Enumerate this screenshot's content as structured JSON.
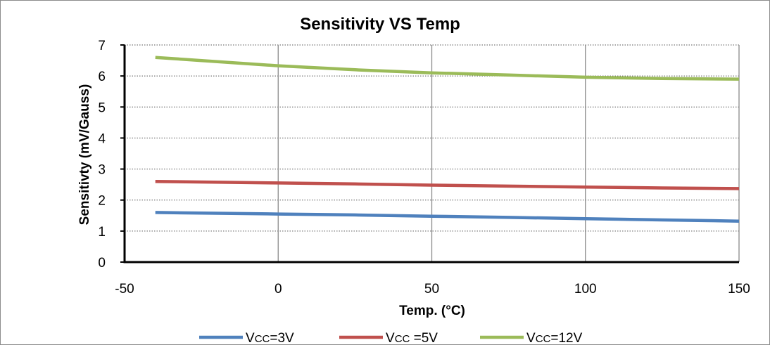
{
  "chart_data": {
    "type": "line",
    "title": "Sensitivity  VS  Temp",
    "xlabel": "Temp. (°C)",
    "ylabel": "Sensitivty (mV/Gauss)",
    "xlim": [
      -50,
      150
    ],
    "ylim": [
      0,
      7
    ],
    "xticks": [
      -50,
      0,
      50,
      100,
      150
    ],
    "yticks": [
      0,
      1,
      2,
      3,
      4,
      5,
      6,
      7
    ],
    "grid": {
      "vertical": "solid",
      "horizontal": "dotted"
    },
    "legend_position": "bottom",
    "x": [
      -40,
      0,
      25,
      50,
      75,
      100,
      125,
      150
    ],
    "series": [
      {
        "legend_main": "V",
        "legend_sub": "CC",
        "legend_suffix": "=3V",
        "color": "#4f81bd",
        "values": [
          1.6,
          1.55,
          1.52,
          1.48,
          1.44,
          1.4,
          1.36,
          1.32
        ]
      },
      {
        "legend_main": "V",
        "legend_sub": "CC",
        "legend_suffix": " =5V",
        "color": "#c0504d",
        "values": [
          2.6,
          2.55,
          2.52,
          2.48,
          2.45,
          2.42,
          2.39,
          2.37
        ]
      },
      {
        "legend_main": "V",
        "legend_sub": "CC",
        "legend_suffix": "=12V",
        "color": "#9bbb59",
        "values": [
          6.6,
          6.33,
          6.2,
          6.1,
          6.03,
          5.96,
          5.92,
          5.9
        ]
      }
    ]
  }
}
